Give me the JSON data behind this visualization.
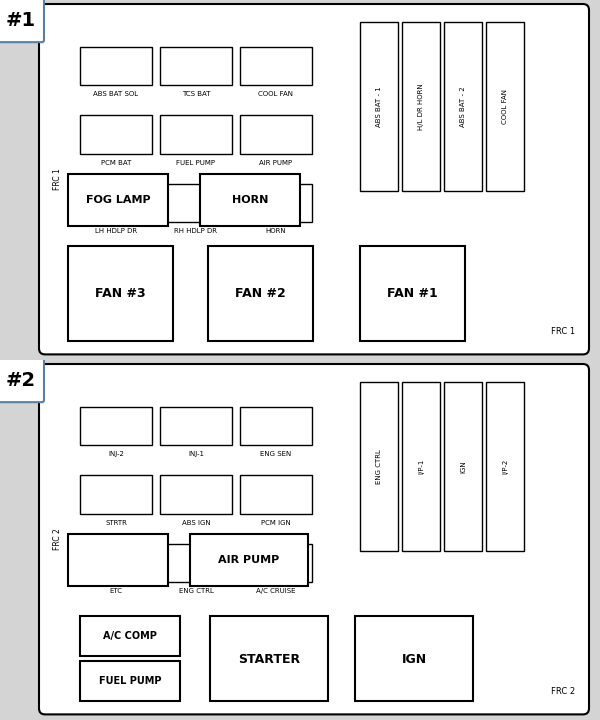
{
  "bg_color": "#d4d4d4",
  "panel_bg": "#ffffff",
  "border_color": "#000000",
  "box1": {
    "label": "#1",
    "frc_label_side": "FRC 1",
    "frc_label_br": "FRC 1",
    "small_fuses": [
      {
        "col": 0,
        "row": 0,
        "text": "ABS BAT SOL"
      },
      {
        "col": 1,
        "row": 0,
        "text": "TCS BAT"
      },
      {
        "col": 2,
        "row": 0,
        "text": "COOL FAN"
      },
      {
        "col": 0,
        "row": 1,
        "text": "PCM BAT"
      },
      {
        "col": 1,
        "row": 1,
        "text": "FUEL PUMP"
      },
      {
        "col": 2,
        "row": 1,
        "text": "AIR PUMP"
      },
      {
        "col": 0,
        "row": 2,
        "text": "LH HDLP DR"
      },
      {
        "col": 1,
        "row": 2,
        "text": "RH HDLP DR"
      },
      {
        "col": 2,
        "row": 2,
        "text": "HORN"
      }
    ],
    "tall_fuses": [
      {
        "col": 0,
        "text": "ABS BAT - 1"
      },
      {
        "col": 1,
        "text": "H/L DR HORN"
      },
      {
        "col": 2,
        "text": "ABS BAT - 2"
      },
      {
        "col": 3,
        "text": "COOL FAN"
      }
    ],
    "medium_fuses": [
      {
        "col": 0,
        "text": "FOG LAMP"
      },
      {
        "col": 1,
        "text": "HORN"
      }
    ],
    "large_fuses": [
      {
        "col": 0,
        "text": "FAN #3"
      },
      {
        "col": 1,
        "text": "FAN #2"
      },
      {
        "col": 2,
        "text": "FAN #1"
      }
    ]
  },
  "box2": {
    "label": "#2",
    "frc_label_side": "FRC 2",
    "frc_label_br": "FRC 2",
    "small_fuses": [
      {
        "col": 0,
        "row": 0,
        "text": "INJ-2"
      },
      {
        "col": 1,
        "row": 0,
        "text": "INJ-1"
      },
      {
        "col": 2,
        "row": 0,
        "text": "ENG SEN"
      },
      {
        "col": 0,
        "row": 1,
        "text": "STRTR"
      },
      {
        "col": 1,
        "row": 1,
        "text": "ABS IGN"
      },
      {
        "col": 2,
        "row": 1,
        "text": "PCM IGN"
      },
      {
        "col": 0,
        "row": 2,
        "text": "ETC"
      },
      {
        "col": 1,
        "row": 2,
        "text": "ENG CTRL"
      },
      {
        "col": 2,
        "row": 2,
        "text": "A/C CRUISE"
      }
    ],
    "tall_fuses": [
      {
        "col": 0,
        "text": "ENG CTRL"
      },
      {
        "col": 1,
        "text": "I/P-1"
      },
      {
        "col": 2,
        "text": "IGN"
      },
      {
        "col": 3,
        "text": "I/P-2"
      }
    ],
    "row1_fuses": [
      {
        "col": 0,
        "text": ""
      },
      {
        "col": 1,
        "text": "AIR PUMP"
      }
    ],
    "bottom_left_fuses": [
      {
        "row": 0,
        "text": "A/C COMP"
      },
      {
        "row": 1,
        "text": "FUEL PUMP"
      }
    ],
    "bottom_right_fuses": [
      {
        "col": 0,
        "text": "STARTER"
      },
      {
        "col": 1,
        "text": "IGN"
      }
    ]
  }
}
